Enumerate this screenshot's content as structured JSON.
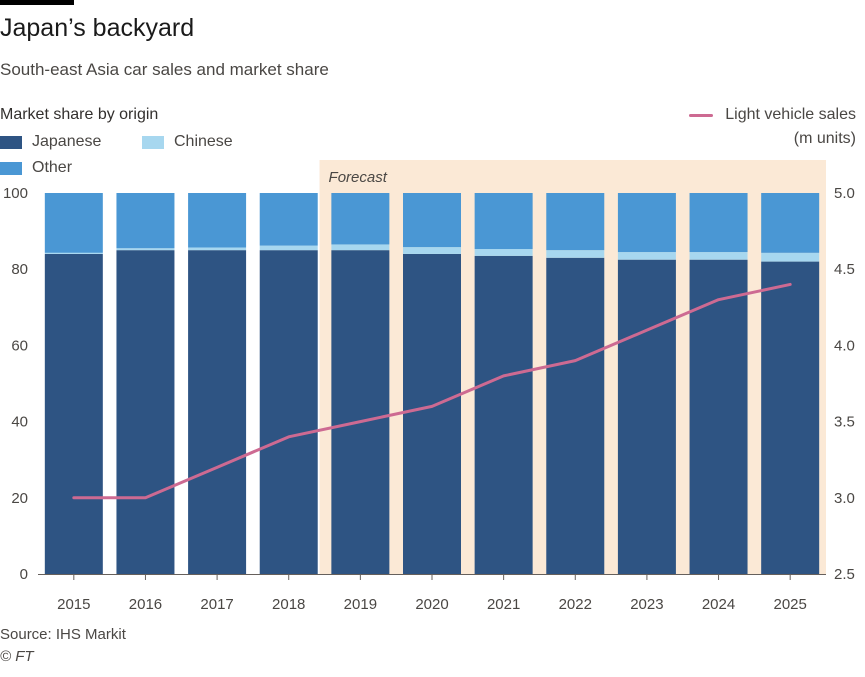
{
  "header": {
    "title": "Japan’s backyard",
    "subtitle": "South-east Asia car sales and market share"
  },
  "legend": {
    "heading": "Market share by origin",
    "japanese": "Japanese",
    "chinese": "Chinese",
    "other": "Other",
    "line_label": "Light vehicle sales",
    "line_unit": "(m units)"
  },
  "footer": {
    "source": "Source: IHS Markit",
    "copyright": "© FT"
  },
  "colors": {
    "japanese": "#2e5483",
    "chinese": "#a7d7ef",
    "other": "#4a97d4",
    "line": "#cd6a92",
    "forecast_band": "#fbe9d6"
  },
  "chart_data": {
    "type": "bar",
    "stacked": true,
    "categories": [
      "2015",
      "2016",
      "2017",
      "2018",
      "2019",
      "2020",
      "2021",
      "2022",
      "2023",
      "2024",
      "2025"
    ],
    "series": [
      {
        "name": "Japanese",
        "values": [
          84,
          85,
          85,
          85,
          85,
          84,
          83.5,
          83,
          82.5,
          82.5,
          82
        ]
      },
      {
        "name": "Chinese",
        "values": [
          0.3,
          0.5,
          0.7,
          1.2,
          1.5,
          1.8,
          1.8,
          2,
          2,
          2,
          2.3
        ]
      },
      {
        "name": "Other",
        "values": [
          15.7,
          14.5,
          14.3,
          13.8,
          13.5,
          14.2,
          14.7,
          15,
          15.5,
          15.5,
          15.7
        ]
      }
    ],
    "line_series": {
      "name": "Light vehicle sales",
      "values": [
        3.0,
        3.0,
        3.2,
        3.4,
        3.5,
        3.6,
        3.8,
        3.9,
        4.1,
        4.3,
        4.4
      ]
    },
    "forecast_label": "Forecast",
    "forecast_start": "2019",
    "y_left": {
      "min": 0,
      "max": 100,
      "ticks": [
        0,
        20,
        40,
        60,
        80,
        100
      ]
    },
    "y_right": {
      "min": 2.5,
      "max": 5.0,
      "ticks": [
        "2.5",
        "3.0",
        "3.5",
        "4.0",
        "4.5",
        "5.0"
      ]
    }
  }
}
